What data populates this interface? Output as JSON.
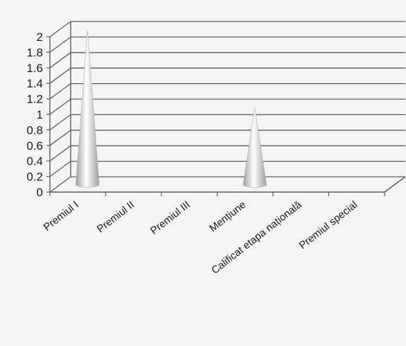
{
  "chart_data": {
    "type": "bar",
    "style": "3d-cone",
    "categories": [
      "Premiul I",
      "Premiul II",
      "Premiul III",
      "Mențiune",
      "Calificat etapa națională",
      "Premiul special"
    ],
    "values": [
      2,
      0,
      0,
      1,
      0,
      0
    ],
    "title": "",
    "xlabel": "",
    "ylabel": "",
    "ylim": [
      0,
      2
    ],
    "yticks": [
      "0",
      "0.2",
      "0.4",
      "0.6",
      "0.8",
      "1",
      "1.2",
      "1.4",
      "1.6",
      "1.8",
      "2"
    ],
    "grid": true,
    "legend": "none"
  },
  "colors": {
    "grid": "#5a5a5a",
    "cone_light": "#ffffff",
    "cone_dark": "#9c9c9c",
    "background": "#f4f4f2"
  }
}
